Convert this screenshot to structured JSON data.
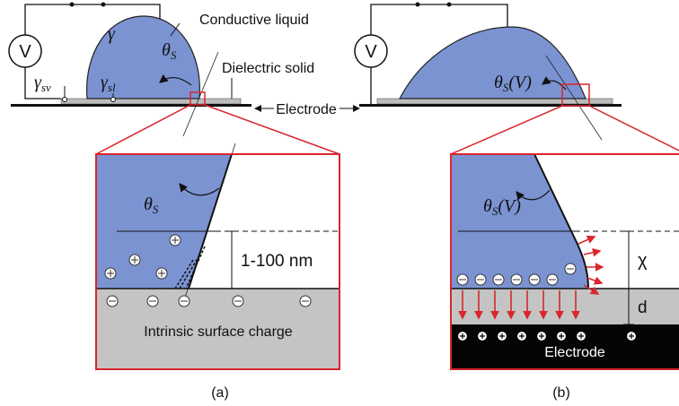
{
  "panel_a": {
    "caption": "(a)",
    "voltage": "V",
    "liquid_label": "Conductive liquid",
    "solid_label": "Dielectric solid",
    "electrode_label": "Electrode",
    "gamma": "γ",
    "gamma_sv": {
      "base": "γ",
      "sub": "sv"
    },
    "gamma_sl": {
      "base": "γ",
      "sub": "sl"
    },
    "theta": {
      "base": "θ",
      "sub": "S"
    },
    "zoom": {
      "theta": {
        "base": "θ",
        "sub": "S"
      },
      "thickness": "1-100 nm",
      "surface_label": "Intrinsic surface charge"
    }
  },
  "panel_b": {
    "caption": "(b)",
    "voltage": "V",
    "theta": {
      "base": "θ",
      "sub": "S",
      "suffix": "(V)"
    },
    "zoom": {
      "theta": {
        "base": "θ",
        "sub": "S",
        "suffix": "(V)"
      },
      "chi": "χ",
      "d": "d",
      "electrode_label": "Electrode"
    }
  }
}
